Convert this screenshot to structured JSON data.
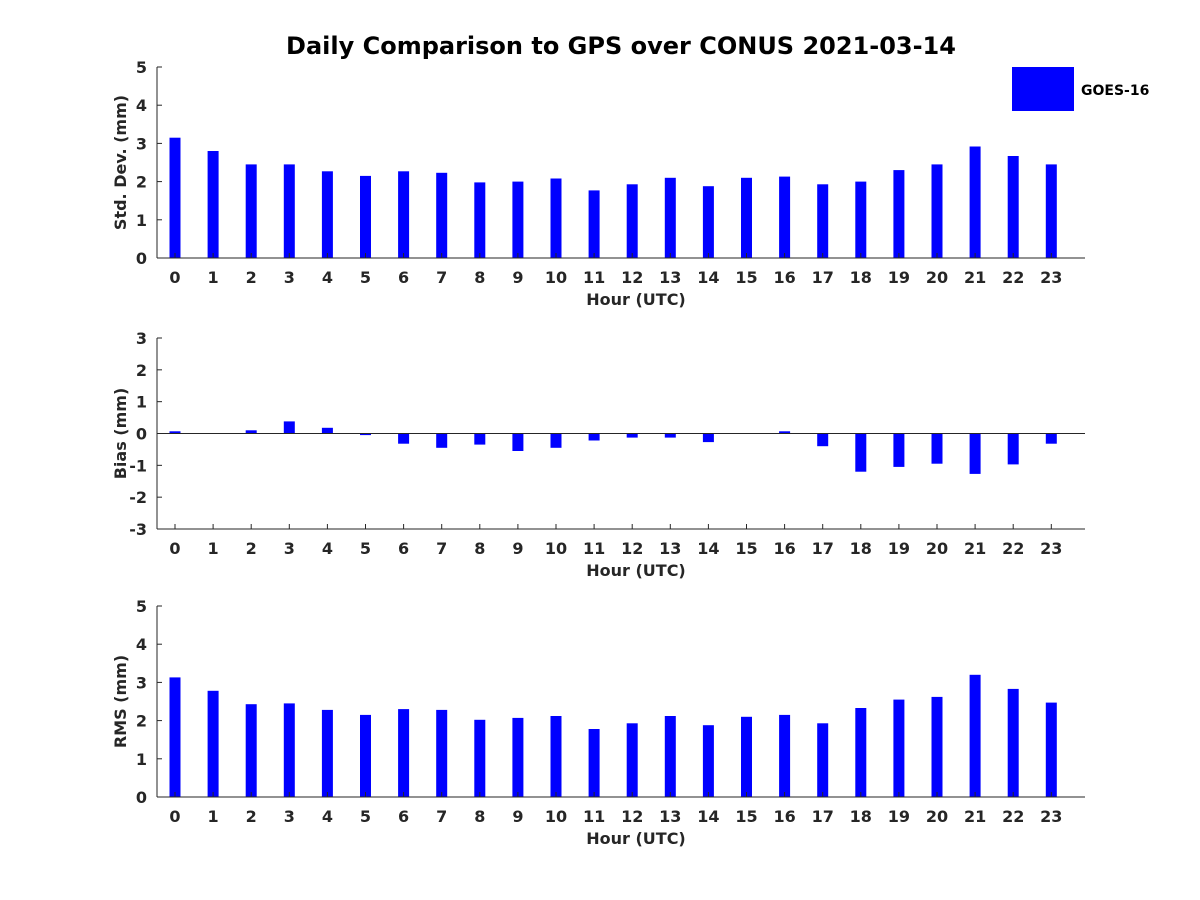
{
  "title": "Daily Comparison to GPS over CONUS 2021-03-14",
  "legend": {
    "label": "GOES-16",
    "color": "#0000ff"
  },
  "bar_color": "#0000ff",
  "chart_data": [
    {
      "type": "bar",
      "name": "stddev",
      "title": "Daily Comparison to GPS over CONUS 2021-03-14",
      "xlabel": "Hour (UTC)",
      "ylabel": "Std. Dev. (mm)",
      "ylim": [
        0,
        5
      ],
      "yticks": [
        0,
        1,
        2,
        3,
        4,
        5
      ],
      "categories": [
        "0",
        "1",
        "2",
        "3",
        "4",
        "5",
        "6",
        "7",
        "8",
        "9",
        "10",
        "11",
        "12",
        "13",
        "14",
        "15",
        "16",
        "17",
        "18",
        "19",
        "20",
        "21",
        "22",
        "23"
      ],
      "series": [
        {
          "name": "GOES-16",
          "values": [
            3.15,
            2.8,
            2.45,
            2.45,
            2.27,
            2.15,
            2.27,
            2.23,
            1.98,
            2.0,
            2.08,
            1.77,
            1.93,
            2.1,
            1.88,
            2.1,
            2.13,
            1.93,
            2.0,
            2.3,
            2.45,
            2.92,
            2.67,
            2.45
          ]
        }
      ]
    },
    {
      "type": "bar",
      "name": "bias",
      "xlabel": "Hour (UTC)",
      "ylabel": "Bias (mm)",
      "ylim": [
        -3,
        3
      ],
      "yticks": [
        -3,
        -2,
        -1,
        0,
        1,
        2,
        3
      ],
      "zero_line": true,
      "categories": [
        "0",
        "1",
        "2",
        "3",
        "4",
        "5",
        "6",
        "7",
        "8",
        "9",
        "10",
        "11",
        "12",
        "13",
        "14",
        "15",
        "16",
        "17",
        "18",
        "19",
        "20",
        "21",
        "22",
        "23"
      ],
      "series": [
        {
          "name": "GOES-16",
          "values": [
            0.07,
            0.0,
            0.1,
            0.38,
            0.18,
            -0.05,
            -0.32,
            -0.45,
            -0.35,
            -0.55,
            -0.45,
            -0.22,
            -0.13,
            -0.13,
            -0.27,
            0.0,
            0.07,
            -0.4,
            -1.2,
            -1.05,
            -0.95,
            -1.27,
            -0.97,
            -0.32
          ]
        }
      ]
    },
    {
      "type": "bar",
      "name": "rms",
      "xlabel": "Hour (UTC)",
      "ylabel": "RMS (mm)",
      "ylim": [
        0,
        5
      ],
      "yticks": [
        0,
        1,
        2,
        3,
        4,
        5
      ],
      "categories": [
        "0",
        "1",
        "2",
        "3",
        "4",
        "5",
        "6",
        "7",
        "8",
        "9",
        "10",
        "11",
        "12",
        "13",
        "14",
        "15",
        "16",
        "17",
        "18",
        "19",
        "20",
        "21",
        "22",
        "23"
      ],
      "series": [
        {
          "name": "GOES-16",
          "values": [
            3.13,
            2.78,
            2.43,
            2.45,
            2.28,
            2.15,
            2.3,
            2.28,
            2.02,
            2.07,
            2.12,
            1.78,
            1.93,
            2.12,
            1.88,
            2.1,
            2.15,
            1.93,
            2.33,
            2.55,
            2.62,
            3.2,
            2.83,
            2.47
          ]
        }
      ]
    }
  ]
}
